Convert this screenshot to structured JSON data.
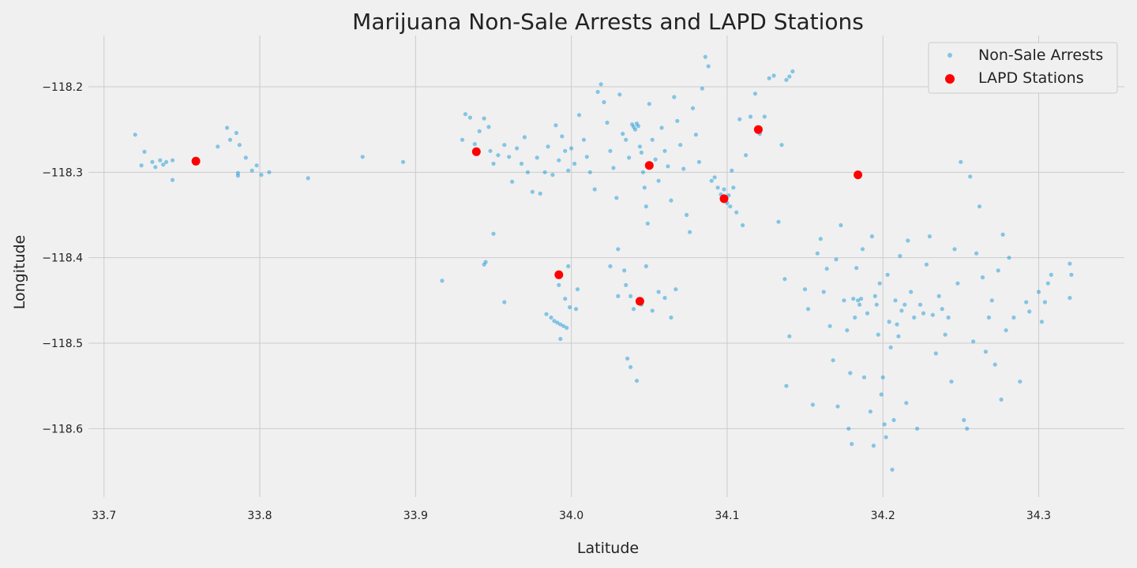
{
  "chart_data": {
    "type": "scatter",
    "title": "Marijuana Non-Sale Arrests and LAPD Stations",
    "xlabel": "Latitude",
    "ylabel": "Longitude",
    "xlim": [
      33.69,
      34.355
    ],
    "ylim": [
      -118.68,
      -118.14
    ],
    "xticks": [
      33.7,
      33.8,
      33.9,
      34.0,
      34.1,
      34.2,
      34.3
    ],
    "xtick_labels": [
      "33.7",
      "33.8",
      "33.9",
      "34.0",
      "34.1",
      "34.2",
      "34.3"
    ],
    "yticks": [
      -118.2,
      -118.3,
      -118.4,
      -118.5,
      -118.6
    ],
    "ytick_labels": [
      "−118.2",
      "−118.3",
      "−118.4",
      "−118.5",
      "−118.6"
    ],
    "grid": true,
    "legend_position": "top-right",
    "series": [
      {
        "name": "Non-Sale Arrests",
        "color": "#008fd5",
        "opacity": 0.45,
        "points": [
          [
            33.72,
            -118.256
          ],
          [
            33.724,
            -118.292
          ],
          [
            33.726,
            -118.276
          ],
          [
            33.731,
            -118.288
          ],
          [
            33.733,
            -118.294
          ],
          [
            33.736,
            -118.286
          ],
          [
            33.738,
            -118.291
          ],
          [
            33.74,
            -118.288
          ],
          [
            33.744,
            -118.286
          ],
          [
            33.744,
            -118.309
          ],
          [
            33.773,
            -118.27
          ],
          [
            33.779,
            -118.248
          ],
          [
            33.781,
            -118.262
          ],
          [
            33.785,
            -118.254
          ],
          [
            33.787,
            -118.268
          ],
          [
            33.786,
            -118.301
          ],
          [
            33.786,
            -118.304
          ],
          [
            33.791,
            -118.283
          ],
          [
            33.795,
            -118.298
          ],
          [
            33.798,
            -118.292
          ],
          [
            33.801,
            -118.303
          ],
          [
            33.806,
            -118.3
          ],
          [
            33.831,
            -118.307
          ],
          [
            33.866,
            -118.282
          ],
          [
            33.892,
            -118.288
          ],
          [
            33.917,
            -118.427
          ],
          [
            33.93,
            -118.262
          ],
          [
            33.932,
            -118.232
          ],
          [
            33.935,
            -118.236
          ],
          [
            33.938,
            -118.267
          ],
          [
            33.941,
            -118.252
          ],
          [
            33.944,
            -118.237
          ],
          [
            33.947,
            -118.247
          ],
          [
            33.948,
            -118.275
          ],
          [
            33.95,
            -118.29
          ],
          [
            33.953,
            -118.28
          ],
          [
            33.957,
            -118.268
          ],
          [
            33.96,
            -118.282
          ],
          [
            33.962,
            -118.311
          ],
          [
            33.965,
            -118.272
          ],
          [
            33.968,
            -118.29
          ],
          [
            33.97,
            -118.259
          ],
          [
            33.972,
            -118.3
          ],
          [
            33.975,
            -118.323
          ],
          [
            33.978,
            -118.283
          ],
          [
            33.98,
            -118.325
          ],
          [
            33.983,
            -118.3
          ],
          [
            33.985,
            -118.27
          ],
          [
            33.988,
            -118.303
          ],
          [
            33.99,
            -118.245
          ],
          [
            33.992,
            -118.286
          ],
          [
            33.994,
            -118.258
          ],
          [
            33.996,
            -118.275
          ],
          [
            33.998,
            -118.298
          ],
          [
            34.0,
            -118.272
          ],
          [
            34.002,
            -118.29
          ],
          [
            33.944,
            -118.408
          ],
          [
            33.945,
            -118.405
          ],
          [
            33.95,
            -118.372
          ],
          [
            33.957,
            -118.452
          ],
          [
            33.984,
            -118.466
          ],
          [
            33.987,
            -118.47
          ],
          [
            33.989,
            -118.474
          ],
          [
            33.991,
            -118.476
          ],
          [
            33.993,
            -118.478
          ],
          [
            33.995,
            -118.48
          ],
          [
            33.997,
            -118.482
          ],
          [
            33.992,
            -118.432
          ],
          [
            33.996,
            -118.448
          ],
          [
            33.999,
            -118.458
          ],
          [
            34.003,
            -118.46
          ],
          [
            34.004,
            -118.437
          ],
          [
            33.998,
            -118.41
          ],
          [
            33.993,
            -118.495
          ],
          [
            34.005,
            -118.233
          ],
          [
            34.008,
            -118.262
          ],
          [
            34.01,
            -118.282
          ],
          [
            34.012,
            -118.3
          ],
          [
            34.015,
            -118.32
          ],
          [
            34.017,
            -118.206
          ],
          [
            34.019,
            -118.197
          ],
          [
            34.021,
            -118.218
          ],
          [
            34.023,
            -118.242
          ],
          [
            34.025,
            -118.275
          ],
          [
            34.027,
            -118.295
          ],
          [
            34.029,
            -118.33
          ],
          [
            34.031,
            -118.209
          ],
          [
            34.033,
            -118.255
          ],
          [
            34.035,
            -118.262
          ],
          [
            34.037,
            -118.283
          ],
          [
            34.039,
            -118.244
          ],
          [
            34.04,
            -118.247
          ],
          [
            34.041,
            -118.25
          ],
          [
            34.042,
            -118.243
          ],
          [
            34.043,
            -118.246
          ],
          [
            34.044,
            -118.27
          ],
          [
            34.045,
            -118.277
          ],
          [
            34.046,
            -118.3
          ],
          [
            34.047,
            -118.318
          ],
          [
            34.048,
            -118.34
          ],
          [
            34.049,
            -118.36
          ],
          [
            34.05,
            -118.22
          ],
          [
            34.052,
            -118.262
          ],
          [
            34.054,
            -118.285
          ],
          [
            34.056,
            -118.31
          ],
          [
            34.058,
            -118.248
          ],
          [
            34.06,
            -118.275
          ],
          [
            34.062,
            -118.293
          ],
          [
            34.064,
            -118.333
          ],
          [
            34.066,
            -118.212
          ],
          [
            34.068,
            -118.24
          ],
          [
            34.07,
            -118.268
          ],
          [
            34.072,
            -118.296
          ],
          [
            34.074,
            -118.35
          ],
          [
            34.076,
            -118.37
          ],
          [
            34.078,
            -118.225
          ],
          [
            34.08,
            -118.256
          ],
          [
            34.082,
            -118.288
          ],
          [
            34.084,
            -118.202
          ],
          [
            34.086,
            -118.165
          ],
          [
            34.088,
            -118.176
          ],
          [
            34.09,
            -118.31
          ],
          [
            34.092,
            -118.306
          ],
          [
            34.094,
            -118.318
          ],
          [
            34.096,
            -118.326
          ],
          [
            34.098,
            -118.32
          ],
          [
            34.099,
            -118.33
          ],
          [
            34.1,
            -118.336
          ],
          [
            34.101,
            -118.327
          ],
          [
            34.102,
            -118.34
          ],
          [
            34.103,
            -118.298
          ],
          [
            34.104,
            -118.318
          ],
          [
            34.106,
            -118.347
          ],
          [
            34.108,
            -118.238
          ],
          [
            34.11,
            -118.362
          ],
          [
            34.112,
            -118.28
          ],
          [
            34.115,
            -118.235
          ],
          [
            34.118,
            -118.208
          ],
          [
            34.121,
            -118.255
          ],
          [
            34.124,
            -118.235
          ],
          [
            34.127,
            -118.19
          ],
          [
            34.13,
            -118.187
          ],
          [
            34.133,
            -118.358
          ],
          [
            34.135,
            -118.268
          ],
          [
            34.137,
            -118.425
          ],
          [
            34.138,
            -118.192
          ],
          [
            34.14,
            -118.188
          ],
          [
            34.142,
            -118.182
          ],
          [
            34.138,
            -118.55
          ],
          [
            34.14,
            -118.492
          ],
          [
            34.036,
            -118.518
          ],
          [
            34.038,
            -118.528
          ],
          [
            34.042,
            -118.544
          ],
          [
            34.03,
            -118.445
          ],
          [
            34.035,
            -118.432
          ],
          [
            34.038,
            -118.445
          ],
          [
            34.04,
            -118.46
          ],
          [
            34.045,
            -118.455
          ],
          [
            34.048,
            -118.41
          ],
          [
            34.052,
            -118.462
          ],
          [
            34.056,
            -118.44
          ],
          [
            34.06,
            -118.447
          ],
          [
            34.064,
            -118.47
          ],
          [
            34.067,
            -118.437
          ],
          [
            34.025,
            -118.41
          ],
          [
            34.03,
            -118.39
          ],
          [
            34.034,
            -118.415
          ],
          [
            34.15,
            -118.437
          ],
          [
            34.152,
            -118.46
          ],
          [
            34.155,
            -118.572
          ],
          [
            34.158,
            -118.395
          ],
          [
            34.16,
            -118.378
          ],
          [
            34.162,
            -118.44
          ],
          [
            34.164,
            -118.413
          ],
          [
            34.166,
            -118.48
          ],
          [
            34.168,
            -118.52
          ],
          [
            34.17,
            -118.402
          ],
          [
            34.171,
            -118.574
          ],
          [
            34.173,
            -118.362
          ],
          [
            34.175,
            -118.45
          ],
          [
            34.177,
            -118.485
          ],
          [
            34.178,
            -118.6
          ],
          [
            34.179,
            -118.535
          ],
          [
            34.18,
            -118.618
          ],
          [
            34.181,
            -118.448
          ],
          [
            34.182,
            -118.47
          ],
          [
            34.183,
            -118.412
          ],
          [
            34.184,
            -118.45
          ],
          [
            34.185,
            -118.455
          ],
          [
            34.186,
            -118.448
          ],
          [
            34.187,
            -118.39
          ],
          [
            34.188,
            -118.54
          ],
          [
            34.19,
            -118.465
          ],
          [
            34.192,
            -118.58
          ],
          [
            34.193,
            -118.375
          ],
          [
            34.194,
            -118.62
          ],
          [
            34.195,
            -118.445
          ],
          [
            34.196,
            -118.455
          ],
          [
            34.197,
            -118.49
          ],
          [
            34.198,
            -118.43
          ],
          [
            34.199,
            -118.56
          ],
          [
            34.2,
            -118.54
          ],
          [
            34.201,
            -118.595
          ],
          [
            34.202,
            -118.61
          ],
          [
            34.203,
            -118.42
          ],
          [
            34.204,
            -118.475
          ],
          [
            34.205,
            -118.505
          ],
          [
            34.206,
            -118.648
          ],
          [
            34.207,
            -118.59
          ],
          [
            34.208,
            -118.45
          ],
          [
            34.209,
            -118.478
          ],
          [
            34.21,
            -118.492
          ],
          [
            34.211,
            -118.398
          ],
          [
            34.212,
            -118.462
          ],
          [
            34.214,
            -118.455
          ],
          [
            34.215,
            -118.57
          ],
          [
            34.216,
            -118.38
          ],
          [
            34.218,
            -118.44
          ],
          [
            34.22,
            -118.47
          ],
          [
            34.222,
            -118.6
          ],
          [
            34.224,
            -118.455
          ],
          [
            34.226,
            -118.465
          ],
          [
            34.228,
            -118.408
          ],
          [
            34.23,
            -118.375
          ],
          [
            34.232,
            -118.467
          ],
          [
            34.234,
            -118.512
          ],
          [
            34.236,
            -118.445
          ],
          [
            34.238,
            -118.46
          ],
          [
            34.24,
            -118.49
          ],
          [
            34.242,
            -118.47
          ],
          [
            34.244,
            -118.545
          ],
          [
            34.246,
            -118.39
          ],
          [
            34.248,
            -118.43
          ],
          [
            34.25,
            -118.288
          ],
          [
            34.252,
            -118.59
          ],
          [
            34.254,
            -118.6
          ],
          [
            34.256,
            -118.305
          ],
          [
            34.258,
            -118.498
          ],
          [
            34.26,
            -118.395
          ],
          [
            34.262,
            -118.34
          ],
          [
            34.264,
            -118.423
          ],
          [
            34.266,
            -118.51
          ],
          [
            34.268,
            -118.47
          ],
          [
            34.27,
            -118.45
          ],
          [
            34.272,
            -118.525
          ],
          [
            34.274,
            -118.415
          ],
          [
            34.276,
            -118.566
          ],
          [
            34.277,
            -118.373
          ],
          [
            34.279,
            -118.485
          ],
          [
            34.281,
            -118.4
          ],
          [
            34.284,
            -118.47
          ],
          [
            34.288,
            -118.545
          ],
          [
            34.292,
            -118.452
          ],
          [
            34.294,
            -118.463
          ],
          [
            34.3,
            -118.44
          ],
          [
            34.302,
            -118.475
          ],
          [
            34.304,
            -118.452
          ],
          [
            34.306,
            -118.43
          ],
          [
            34.308,
            -118.42
          ],
          [
            34.32,
            -118.407
          ],
          [
            34.321,
            -118.42
          ],
          [
            34.32,
            -118.447
          ]
        ]
      },
      {
        "name": "LAPD Stations",
        "color": "#ff0000",
        "opacity": 1,
        "points": [
          [
            33.759,
            -118.287
          ],
          [
            33.939,
            -118.276
          ],
          [
            34.05,
            -118.292
          ],
          [
            34.12,
            -118.25
          ],
          [
            34.184,
            -118.303
          ],
          [
            34.098,
            -118.331
          ],
          [
            33.992,
            -118.42
          ],
          [
            34.044,
            -118.451
          ]
        ]
      }
    ]
  }
}
